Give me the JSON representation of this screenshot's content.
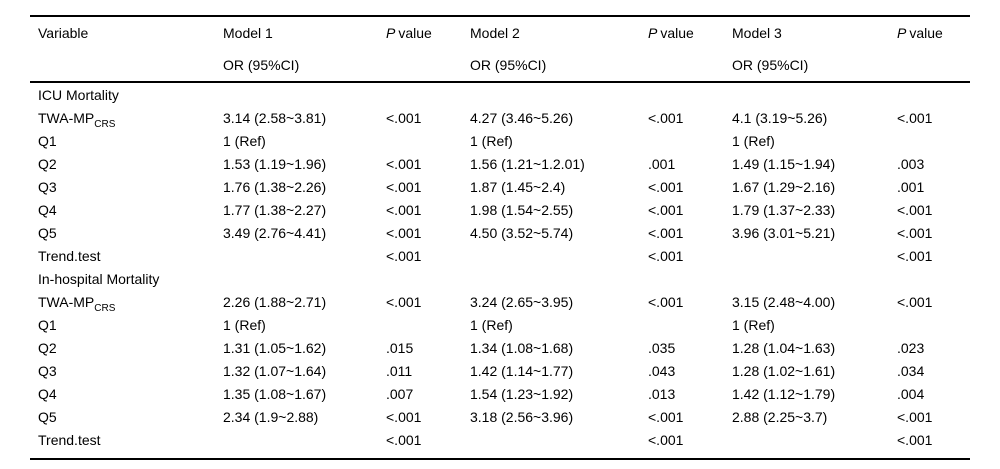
{
  "table": {
    "header": {
      "variable": "Variable",
      "p_label": {
        "italic": "P",
        "rest": "value"
      },
      "models": [
        {
          "title": "Model 1",
          "subtitle": "OR (95%CI)"
        },
        {
          "title": "Model 2",
          "subtitle": "OR (95%CI)"
        },
        {
          "title": "Model 3",
          "subtitle": "OR (95%CI)"
        }
      ]
    },
    "rows": [
      {
        "variable": "ICU Mortality",
        "sub": "",
        "m1": "",
        "p1": "",
        "m2": "",
        "p2": "",
        "m3": "",
        "p3": ""
      },
      {
        "variable": "TWA-MP",
        "sub": "CRS",
        "m1": "3.14 (2.58~3.81)",
        "p1": "<.001",
        "m2": "4.27 (3.46~5.26)",
        "p2": "<.001",
        "m3": "4.1 (3.19~5.26)",
        "p3": "<.001"
      },
      {
        "variable": "Q1",
        "sub": "",
        "m1": "1 (Ref)",
        "p1": "",
        "m2": "1 (Ref)",
        "p2": "",
        "m3": "1 (Ref)",
        "p3": ""
      },
      {
        "variable": "Q2",
        "sub": "",
        "m1": "1.53 (1.19~1.96)",
        "p1": "<.001",
        "m2": "1.56 (1.21~1.2.01)",
        "p2": ".001",
        "m3": "1.49 (1.15~1.94)",
        "p3": ".003"
      },
      {
        "variable": "Q3",
        "sub": "",
        "m1": "1.76 (1.38~2.26)",
        "p1": "<.001",
        "m2": "1.87 (1.45~2.4)",
        "p2": "<.001",
        "m3": "1.67 (1.29~2.16)",
        "p3": ".001"
      },
      {
        "variable": "Q4",
        "sub": "",
        "m1": "1.77 (1.38~2.27)",
        "p1": "<.001",
        "m2": "1.98 (1.54~2.55)",
        "p2": "<.001",
        "m3": "1.79 (1.37~2.33)",
        "p3": "<.001"
      },
      {
        "variable": "Q5",
        "sub": "",
        "m1": "3.49 (2.76~4.41)",
        "p1": "<.001",
        "m2": "4.50 (3.52~5.74)",
        "p2": "<.001",
        "m3": "3.96 (3.01~5.21)",
        "p3": "<.001"
      },
      {
        "variable": "Trend.test",
        "sub": "",
        "m1": "",
        "p1": "<.001",
        "m2": "",
        "p2": "<.001",
        "m3": "",
        "p3": "<.001"
      },
      {
        "variable": "In-hospital Mortality",
        "sub": "",
        "m1": "",
        "p1": "",
        "m2": "",
        "p2": "",
        "m3": "",
        "p3": ""
      },
      {
        "variable": "TWA-MP",
        "sub": "CRS",
        "m1": "2.26 (1.88~2.71)",
        "p1": "<.001",
        "m2": "3.24 (2.65~3.95)",
        "p2": "<.001",
        "m3": "3.15 (2.48~4.00)",
        "p3": "<.001"
      },
      {
        "variable": "Q1",
        "sub": "",
        "m1": "1 (Ref)",
        "p1": "",
        "m2": "1 (Ref)",
        "p2": "",
        "m3": "1 (Ref)",
        "p3": ""
      },
      {
        "variable": "Q2",
        "sub": "",
        "m1": "1.31 (1.05~1.62)",
        "p1": ".015",
        "m2": "1.34 (1.08~1.68)",
        "p2": ".035",
        "m3": "1.28 (1.04~1.63)",
        "p3": ".023"
      },
      {
        "variable": "Q3",
        "sub": "",
        "m1": "1.32 (1.07~1.64)",
        "p1": ".011",
        "m2": "1.42 (1.14~1.77)",
        "p2": ".043",
        "m3": "1.28 (1.02~1.61)",
        "p3": ".034"
      },
      {
        "variable": "Q4",
        "sub": "",
        "m1": "1.35 (1.08~1.67)",
        "p1": ".007",
        "m2": "1.54 (1.23~1.92)",
        "p2": ".013",
        "m3": "1.42 (1.12~1.79)",
        "p3": ".004"
      },
      {
        "variable": "Q5",
        "sub": "",
        "m1": "2.34 (1.9~2.88)",
        "p1": "<.001",
        "m2": "3.18 (2.56~3.96)",
        "p2": "<.001",
        "m3": "2.88 (2.25~3.7)",
        "p3": "<.001"
      },
      {
        "variable": "Trend.test",
        "sub": "",
        "m1": "",
        "p1": "<.001",
        "m2": "",
        "p2": "<.001",
        "m3": "",
        "p3": "<.001"
      }
    ]
  }
}
